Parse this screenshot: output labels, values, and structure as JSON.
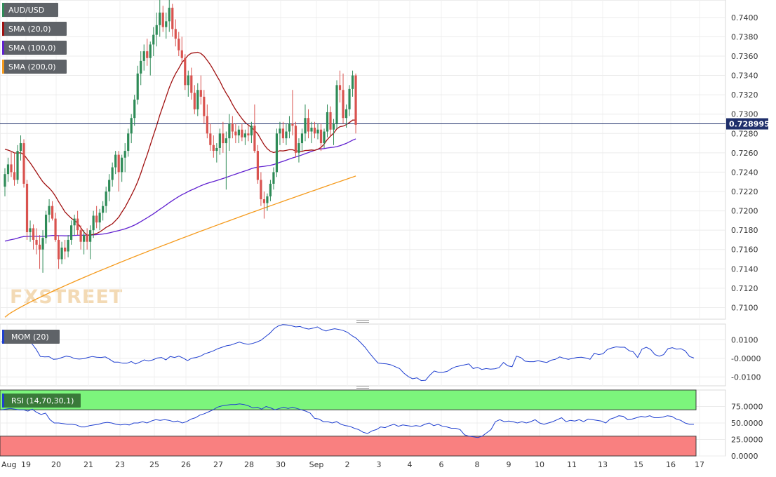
{
  "chart_data": {
    "type": "candlestick",
    "symbol": "AUD/USD",
    "x_labels": [
      "Aug",
      "19",
      "20",
      "21",
      "23",
      "25",
      "26",
      "27",
      "28",
      "30",
      "Sep",
      "2",
      "3",
      "4",
      "6",
      "8",
      "9",
      "10",
      "11",
      "13",
      "15",
      "16",
      "17"
    ],
    "price_panel": {
      "ylim": [
        0.7088,
        0.7418
      ],
      "yticks": [
        "0.7100",
        "0.7120",
        "0.7140",
        "0.7160",
        "0.7180",
        "0.7200",
        "0.7220",
        "0.7240",
        "0.7260",
        "0.7280",
        "0.7300",
        "0.7320",
        "0.7340",
        "0.7360",
        "0.7380",
        "0.7400"
      ],
      "current_price": "0.728995",
      "legend": [
        {
          "label": "AUD/USD",
          "color": "#2e8b57"
        },
        {
          "label": "SMA (20,0)",
          "color": "#a01010"
        },
        {
          "label": "SMA (100,0)",
          "color": "#6020d0"
        },
        {
          "label": "SMA (200,0)",
          "color": "#f59a1c"
        }
      ],
      "candles": [
        [
          0.7225,
          0.7244,
          0.7215,
          0.7238
        ],
        [
          0.7238,
          0.7255,
          0.723,
          0.7248
        ],
        [
          0.7248,
          0.7262,
          0.7235,
          0.724
        ],
        [
          0.724,
          0.726,
          0.7226,
          0.7232
        ],
        [
          0.7232,
          0.7268,
          0.7228,
          0.7262
        ],
        [
          0.7262,
          0.7278,
          0.7252,
          0.727
        ],
        [
          0.727,
          0.7274,
          0.7224,
          0.7228
        ],
        [
          0.7228,
          0.7232,
          0.717,
          0.7178
        ],
        [
          0.7178,
          0.719,
          0.7168,
          0.7182
        ],
        [
          0.7182,
          0.7186,
          0.716,
          0.717
        ],
        [
          0.717,
          0.7182,
          0.7155,
          0.7165
        ],
        [
          0.7165,
          0.7175,
          0.714,
          0.716
        ],
        [
          0.716,
          0.718,
          0.7136,
          0.7172
        ],
        [
          0.7172,
          0.72,
          0.7166,
          0.7196
        ],
        [
          0.7196,
          0.7212,
          0.7188,
          0.7205
        ],
        [
          0.7205,
          0.721,
          0.719,
          0.7192
        ],
        [
          0.7192,
          0.7198,
          0.7168,
          0.717
        ],
        [
          0.717,
          0.7175,
          0.714,
          0.715
        ],
        [
          0.715,
          0.7168,
          0.7145,
          0.7162
        ],
        [
          0.7162,
          0.717,
          0.715,
          0.7158
        ],
        [
          0.7158,
          0.7175,
          0.7152,
          0.717
        ],
        [
          0.717,
          0.719,
          0.7165,
          0.7185
        ],
        [
          0.7185,
          0.7196,
          0.7175,
          0.7192
        ],
        [
          0.7192,
          0.72,
          0.7175,
          0.718
        ],
        [
          0.718,
          0.7185,
          0.716,
          0.7168
        ],
        [
          0.7168,
          0.718,
          0.7155,
          0.7175
        ],
        [
          0.7175,
          0.7182,
          0.716,
          0.7168
        ],
        [
          0.7168,
          0.7185,
          0.715,
          0.718
        ],
        [
          0.718,
          0.72,
          0.7172,
          0.7195
        ],
        [
          0.7195,
          0.7205,
          0.7182,
          0.7188
        ],
        [
          0.7188,
          0.7202,
          0.718,
          0.7198
        ],
        [
          0.7198,
          0.721,
          0.719,
          0.7205
        ],
        [
          0.7205,
          0.7225,
          0.7198,
          0.722
        ],
        [
          0.722,
          0.7238,
          0.721,
          0.7232
        ],
        [
          0.7232,
          0.725,
          0.7225,
          0.7245
        ],
        [
          0.7245,
          0.7262,
          0.7238,
          0.7258
        ],
        [
          0.7258,
          0.7262,
          0.722,
          0.724
        ],
        [
          0.724,
          0.7258,
          0.723,
          0.7255
        ],
        [
          0.7255,
          0.727,
          0.724,
          0.7262
        ],
        [
          0.7262,
          0.7285,
          0.7256,
          0.728
        ],
        [
          0.728,
          0.73,
          0.727,
          0.7296
        ],
        [
          0.7296,
          0.732,
          0.7288,
          0.7315
        ],
        [
          0.7315,
          0.735,
          0.731,
          0.7342
        ],
        [
          0.7342,
          0.7365,
          0.733,
          0.7355
        ],
        [
          0.7355,
          0.7372,
          0.7345,
          0.7365
        ],
        [
          0.7365,
          0.7378,
          0.735,
          0.7358
        ],
        [
          0.7358,
          0.7375,
          0.734,
          0.7372
        ],
        [
          0.7372,
          0.739,
          0.736,
          0.7382
        ],
        [
          0.7382,
          0.7405,
          0.737,
          0.7392
        ],
        [
          0.7392,
          0.7418,
          0.738,
          0.7405
        ],
        [
          0.7405,
          0.7412,
          0.7385,
          0.739
        ],
        [
          0.739,
          0.7405,
          0.7378,
          0.7396
        ],
        [
          0.7396,
          0.7418,
          0.7385,
          0.741
        ],
        [
          0.741,
          0.7414,
          0.738,
          0.7388
        ],
        [
          0.7388,
          0.7398,
          0.737,
          0.7378
        ],
        [
          0.7378,
          0.7385,
          0.736,
          0.7366
        ],
        [
          0.7366,
          0.738,
          0.7352,
          0.7358
        ],
        [
          0.7358,
          0.7362,
          0.7325,
          0.733
        ],
        [
          0.733,
          0.7345,
          0.7318,
          0.734
        ],
        [
          0.734,
          0.7348,
          0.7315,
          0.7322
        ],
        [
          0.7322,
          0.733,
          0.73,
          0.7305
        ],
        [
          0.7305,
          0.7332,
          0.7298,
          0.7325
        ],
        [
          0.7325,
          0.734,
          0.731,
          0.7318
        ],
        [
          0.7318,
          0.7325,
          0.729,
          0.7298
        ],
        [
          0.7298,
          0.731,
          0.7275,
          0.728
        ],
        [
          0.728,
          0.729,
          0.7262,
          0.7268
        ],
        [
          0.7268,
          0.7278,
          0.7255,
          0.7262
        ],
        [
          0.7262,
          0.727,
          0.725,
          0.7265
        ],
        [
          0.7265,
          0.7285,
          0.7258,
          0.728
        ],
        [
          0.728,
          0.7292,
          0.726,
          0.727
        ],
        [
          0.727,
          0.7282,
          0.7222,
          0.7275
        ],
        [
          0.7275,
          0.73,
          0.7262,
          0.729
        ],
        [
          0.729,
          0.7298,
          0.7275,
          0.7282
        ],
        [
          0.7282,
          0.729,
          0.727,
          0.7278
        ],
        [
          0.7278,
          0.7288,
          0.727,
          0.7284
        ],
        [
          0.7284,
          0.729,
          0.7272,
          0.7276
        ],
        [
          0.7276,
          0.7284,
          0.7268,
          0.728
        ],
        [
          0.728,
          0.7288,
          0.7272,
          0.7278
        ],
        [
          0.7278,
          0.7292,
          0.727,
          0.7288
        ],
        [
          0.7288,
          0.731,
          0.726,
          0.7262
        ],
        [
          0.7262,
          0.7268,
          0.7228,
          0.7232
        ],
        [
          0.7232,
          0.724,
          0.7205,
          0.7212
        ],
        [
          0.7212,
          0.722,
          0.7192,
          0.7208
        ],
        [
          0.7208,
          0.7218,
          0.72,
          0.7215
        ],
        [
          0.7215,
          0.7232,
          0.721,
          0.7228
        ],
        [
          0.7228,
          0.7245,
          0.7222,
          0.724
        ],
        [
          0.724,
          0.7285,
          0.7235,
          0.728
        ],
        [
          0.728,
          0.7292,
          0.7268,
          0.7285
        ],
        [
          0.7285,
          0.7292,
          0.727,
          0.7275
        ],
        [
          0.7275,
          0.729,
          0.7268,
          0.7282
        ],
        [
          0.7282,
          0.7298,
          0.7275,
          0.729
        ],
        [
          0.729,
          0.7325,
          0.7278,
          0.7288
        ],
        [
          0.7288,
          0.7292,
          0.7255,
          0.726
        ],
        [
          0.726,
          0.7275,
          0.725,
          0.727
        ],
        [
          0.727,
          0.7285,
          0.7262,
          0.728
        ],
        [
          0.728,
          0.731,
          0.7272,
          0.7296
        ],
        [
          0.7296,
          0.7305,
          0.7275,
          0.7282
        ],
        [
          0.7282,
          0.7292,
          0.727,
          0.7286
        ],
        [
          0.7286,
          0.7292,
          0.7275,
          0.728
        ],
        [
          0.728,
          0.729,
          0.7274,
          0.7284
        ],
        [
          0.7284,
          0.729,
          0.7262,
          0.727
        ],
        [
          0.727,
          0.7285,
          0.7265,
          0.7282
        ],
        [
          0.7282,
          0.731,
          0.7276,
          0.7302
        ],
        [
          0.7302,
          0.7308,
          0.7278,
          0.7284
        ],
        [
          0.7284,
          0.7295,
          0.7268,
          0.729
        ],
        [
          0.729,
          0.7335,
          0.7285,
          0.733
        ],
        [
          0.733,
          0.7345,
          0.7312,
          0.7325
        ],
        [
          0.7325,
          0.7342,
          0.729,
          0.7296
        ],
        [
          0.7296,
          0.731,
          0.7286,
          0.7305
        ],
        [
          0.7305,
          0.733,
          0.7298,
          0.7326
        ],
        [
          0.7326,
          0.7345,
          0.7318,
          0.734
        ],
        [
          0.734,
          0.7342,
          0.728,
          0.7289
        ]
      ]
    },
    "mom_panel": {
      "label": "MOM (20)",
      "ylim": [
        -0.0148,
        0.0185
      ],
      "yticks": [
        "0.0100",
        "-0.0000",
        "-0.0100"
      ],
      "values": [
        0.0088,
        0.0095,
        0.01,
        0.01,
        0.0098,
        0.0098,
        0.0094,
        0.008,
        0.005,
        0.001,
        0.0008,
        0.0009,
        -0.0005,
        -0.0003,
        0.0005,
        0.0012,
        0.0008,
        -0.0002,
        -0.0004,
        -0.0002,
        0.0005,
        0.001,
        0.0006,
        0.0005,
        0.0008,
        -0.0005,
        -0.002,
        -0.002,
        -0.0026,
        -0.0026,
        -0.0017,
        -0.003,
        -0.002,
        -0.0008,
        -0.0014,
        -0.0008,
        0.0002,
        0.0005,
        -0.0008,
        0.001,
        0.0005,
        0.0012,
        0.0002,
        -0.0012,
        0.0001,
        0.0005,
        0.0012,
        0.0025,
        0.0032,
        0.0041,
        0.0052,
        0.006,
        0.0068,
        0.0072,
        0.008,
        0.0088,
        0.008,
        0.0076,
        0.008,
        0.0088,
        0.0098,
        0.0117,
        0.0135,
        0.016,
        0.0175,
        0.0182,
        0.018,
        0.0176,
        0.017,
        0.0172,
        0.0163,
        0.0158,
        0.0163,
        0.017,
        0.0156,
        0.0148,
        0.0155,
        0.016,
        0.0156,
        0.015,
        0.014,
        0.0122,
        0.0108,
        0.0085,
        0.006,
        0.003,
        0.0002,
        -0.0025,
        -0.0028,
        -0.003,
        -0.0035,
        -0.0045,
        -0.0055,
        -0.008,
        -0.0098,
        -0.011,
        -0.0105,
        -0.012,
        -0.0118,
        -0.009,
        -0.0068,
        -0.0075,
        -0.0075,
        -0.007,
        -0.0055,
        -0.0045,
        -0.004,
        -0.0035,
        -0.003,
        -0.0055,
        -0.0048,
        -0.006,
        -0.0055,
        -0.0058,
        -0.0056,
        -0.005,
        -0.0022,
        -0.004,
        -0.0045,
        0.0012,
        0.0004,
        -0.0015,
        -0.0018,
        -0.0018,
        -0.0012,
        -0.0018,
        -0.0022,
        -0.001,
        -0.0005,
        0.0008,
        0.0,
        -0.0005,
        0.0,
        0.0005,
        0.0006,
        0.0002,
        -0.0005,
        0.0028,
        0.002,
        0.0025,
        0.0048,
        0.0056,
        0.0062,
        0.006,
        0.006,
        0.0042,
        0.0035,
        0.0005,
        0.005,
        0.006,
        0.0048,
        0.002,
        0.0012,
        0.002,
        0.0052,
        0.0058,
        0.005,
        0.0052,
        0.004,
        0.001,
        0.0002
      ]
    },
    "rsi_panel": {
      "label": "RSI (14,70,30,1)",
      "ylim": [
        0,
        100
      ],
      "overbought": 70,
      "oversold": 30,
      "yticks": [
        "75.0000",
        "50.0000",
        "25.0000",
        "0.0000"
      ],
      "values": [
        70,
        71,
        72,
        71,
        70,
        70,
        68,
        71,
        66,
        63,
        65,
        55,
        50,
        50,
        49,
        48,
        48,
        47,
        44,
        44,
        46,
        47,
        48,
        50,
        51,
        50,
        48,
        47,
        48,
        47,
        50,
        50,
        52,
        50,
        53,
        55,
        54,
        55,
        54,
        52,
        53,
        50,
        52,
        56,
        58,
        62,
        64,
        67,
        70,
        74,
        76,
        77,
        78,
        78,
        79,
        78,
        76,
        73,
        74,
        71,
        75,
        73,
        70,
        72,
        74,
        72,
        74,
        72,
        70,
        68,
        65,
        57,
        56,
        52,
        52,
        50,
        52,
        48,
        46,
        45,
        42,
        40,
        36,
        34,
        38,
        40,
        44,
        43,
        46,
        48,
        45,
        47,
        46,
        45,
        46,
        45,
        48,
        50,
        46,
        48,
        45,
        44,
        42,
        42,
        40,
        32,
        30,
        29,
        28,
        30,
        35,
        40,
        52,
        55,
        52,
        53,
        52,
        50,
        52,
        50,
        52,
        55,
        50,
        48,
        50,
        52,
        55,
        58,
        52,
        54,
        53,
        55,
        52,
        56,
        55,
        54,
        53,
        50,
        56,
        58,
        61,
        60,
        55,
        56,
        58,
        60,
        59,
        61,
        58,
        58,
        59,
        61,
        60,
        56,
        54,
        50,
        48,
        48
      ]
    },
    "watermark": "FXSTREET"
  }
}
